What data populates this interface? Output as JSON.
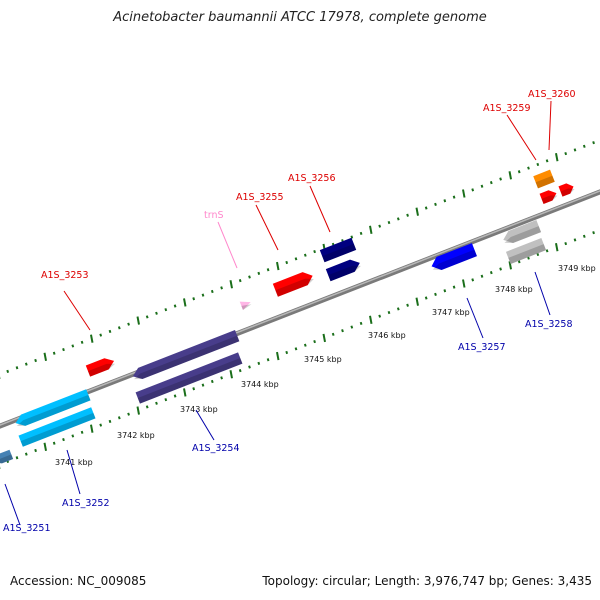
{
  "title": "Acinetobacter baumannii ATCC 17978, complete genome",
  "footer": {
    "accession": "Accession: NC_009085",
    "summary": "Topology: circular; Length: 3,976,747 bp; Genes: 3,435"
  },
  "colors": {
    "backbone": "#8a8a8a",
    "forward_label": "#dd0000",
    "reverse_label": "#0000aa",
    "rna_label": "#ff88cc",
    "tick": "#1a6e1a"
  },
  "scale_labels": [
    "3741 kbp",
    "3742 kbp",
    "3743 kbp",
    "3744 kbp",
    "3745 kbp",
    "3746 kbp",
    "3747 kbp",
    "3748 kbp",
    "3749 kbp"
  ],
  "features": [
    {
      "label": "A1S_3251",
      "strand": "reverse",
      "color": "#4682b4"
    },
    {
      "label": "A1S_3252",
      "strand": "reverse",
      "color": "#00bfff"
    },
    {
      "label": "A1S_3253",
      "strand": "forward",
      "color": "#ff0000"
    },
    {
      "label": "A1S_3254",
      "strand": "reverse",
      "color": "#483d8b"
    },
    {
      "label": "trnS",
      "strand": "forward",
      "color": "#ffb6e6"
    },
    {
      "label": "A1S_3255",
      "strand": "forward",
      "color": "#ff0000"
    },
    {
      "label": "A1S_3256",
      "strand": "forward",
      "color": "#000080"
    },
    {
      "label": "A1S_3257",
      "strand": "reverse",
      "color": "#0000ff"
    },
    {
      "label": "A1S_3258",
      "strand": "reverse",
      "color": "#c0c0c0"
    },
    {
      "label": "A1S_3259",
      "strand": "forward",
      "color": "#ff8c00"
    },
    {
      "label": "A1S_3260",
      "strand": "forward",
      "color": "#ff0000"
    }
  ]
}
